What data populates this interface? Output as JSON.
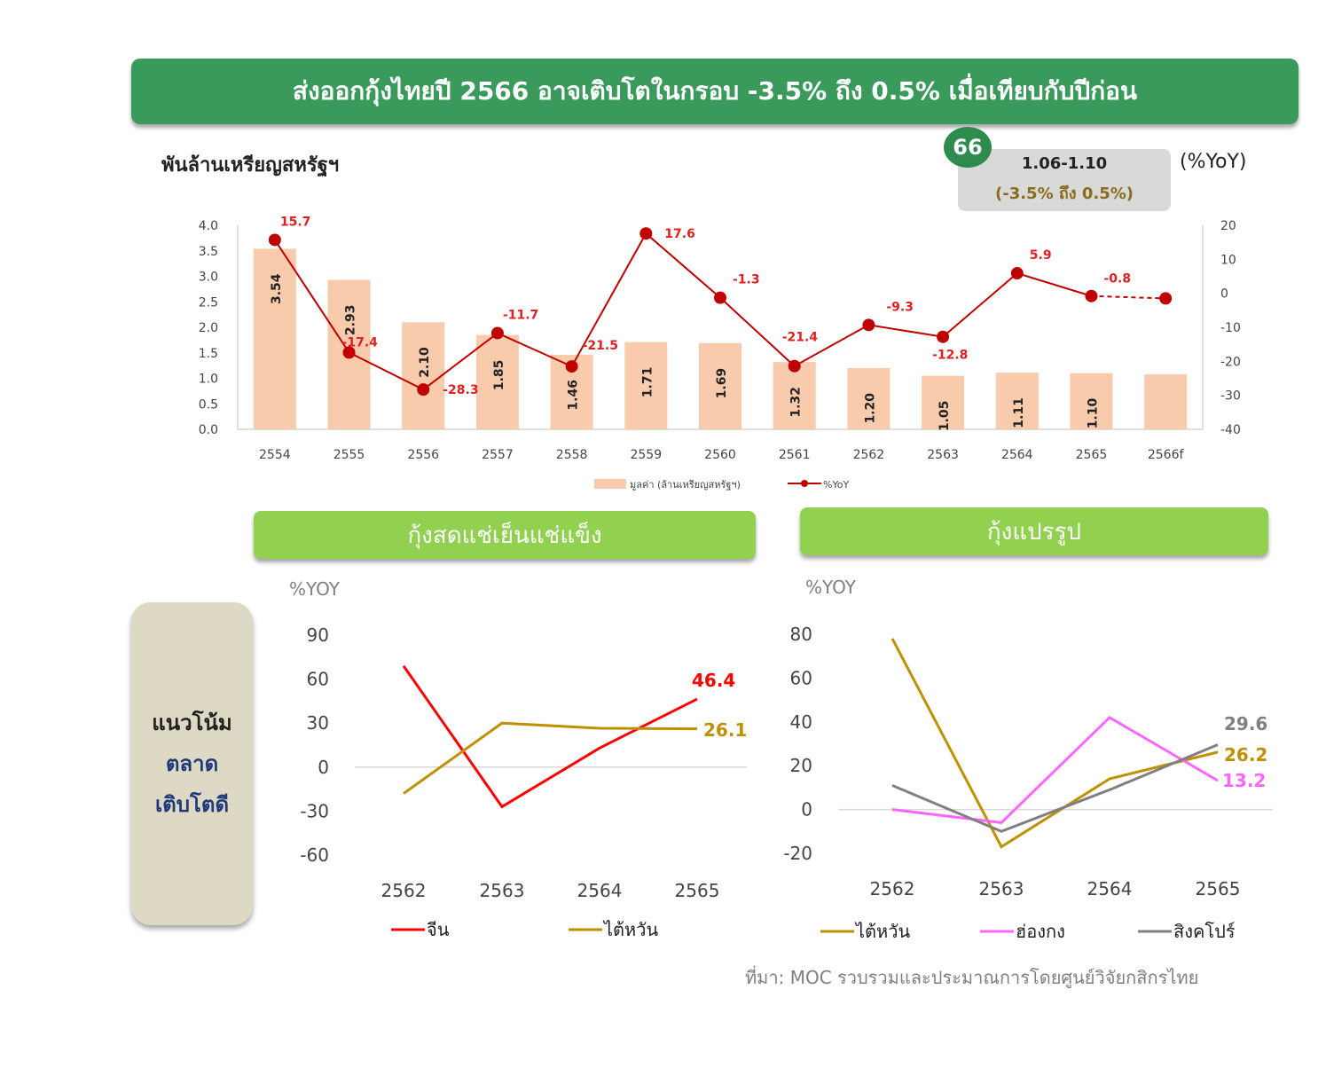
{
  "title": "ส่งออกกุ้งไทยปี 2566 อาจเติบโตในกรอบ -3.5% ถึง 0.5% เมื่อเทียบกับปีก่อน",
  "unit_left": "พันล้านเหรียญสหรัฐฯ",
  "unit_right": "(%YoY)",
  "badge": "66",
  "forecast": {
    "range": "1.06-1.10",
    "yoy": "(-3.5% ถึง 0.5%)"
  },
  "section_fresh": "กุ้งสดแช่เย็นแช่แข็ง",
  "section_processed": "กุ้งแปรรูป",
  "trend": {
    "line1": "แนวโน้ม",
    "line2": "ตลาด",
    "line3": "เติบโตดี"
  },
  "yoy_label_left": "%YOY",
  "yoy_label_right": "%YOY",
  "source": "ที่มา: MOC รวบรวมและประมาณการโดยศูนย์วิจัยกสิกรไทย",
  "colors": {
    "banner": "#3a9a5c",
    "section": "#92d050",
    "bar": "#f8cbad",
    "yoy_line": "#c00000"
  },
  "chart_data": [
    {
      "type": "bar",
      "categories": [
        "2554",
        "2555",
        "2556",
        "2557",
        "2558",
        "2559",
        "2560",
        "2561",
        "2562",
        "2563",
        "2564",
        "2565",
        "2566f"
      ],
      "series": [
        {
          "name": "มูลค่า (ล้านเหรียญสหรัฐฯ)",
          "type": "bar",
          "values": [
            3.54,
            2.93,
            2.1,
            1.85,
            1.46,
            1.71,
            1.69,
            1.32,
            1.2,
            1.05,
            1.11,
            1.1,
            1.08
          ],
          "labels": [
            "3.54",
            "2.93",
            "2.10",
            "1.85",
            "1.46",
            "1.71",
            "1.69",
            "1.32",
            "1.20",
            "1.05",
            "1.11",
            "1.10",
            ""
          ]
        },
        {
          "name": "%YoY",
          "type": "line",
          "axis": "right",
          "values": [
            15.7,
            -17.4,
            -28.3,
            -11.7,
            -21.5,
            17.6,
            -1.3,
            -21.4,
            -9.3,
            -12.8,
            5.9,
            -0.8,
            -1.5
          ],
          "labels": [
            "15.7",
            "-17.4",
            "-28.3",
            "-11.7",
            "-21.5",
            "17.6",
            "-1.3",
            "-21.4",
            "-9.3",
            "-12.8",
            "5.9",
            "-0.8",
            ""
          ],
          "last_segment": "dashed"
        }
      ],
      "ylim": [
        0,
        4.0
      ],
      "yticks": [
        "0.0",
        "0.5",
        "1.0",
        "1.5",
        "2.0",
        "2.5",
        "3.0",
        "3.5",
        "4.0"
      ],
      "y2lim": [
        -40,
        20
      ],
      "y2ticks": [
        "-40",
        "-30",
        "-20",
        "-10",
        "0",
        "10",
        "20"
      ],
      "legend": "bottom"
    },
    {
      "type": "line",
      "x": [
        "2562",
        "2563",
        "2564",
        "2565"
      ],
      "series": [
        {
          "name": "จีน",
          "color": "#ff0000",
          "values": [
            69,
            -27,
            13,
            46.4
          ],
          "end_label": "46.4"
        },
        {
          "name": "ไต้หวัน",
          "color": "#bf9000",
          "values": [
            -18,
            30,
            26.5,
            26.1
          ],
          "end_label": "26.1"
        }
      ],
      "ylim": [
        -60,
        90
      ],
      "yticks": [
        "90",
        "60",
        "30",
        "0",
        "-30",
        "-60"
      ],
      "legend": "bottom"
    },
    {
      "type": "line",
      "x": [
        "2562",
        "2563",
        "2564",
        "2565"
      ],
      "series": [
        {
          "name": "ไต้หวัน",
          "color": "#bf9000",
          "values": [
            78,
            -17,
            14,
            26.2
          ],
          "end_label": "26.2"
        },
        {
          "name": "ฮ่องกง",
          "color": "#ff66ff",
          "values": [
            0,
            -6,
            42,
            13.2
          ],
          "end_label": "13.2"
        },
        {
          "name": "สิงคโปร์",
          "color": "#808080",
          "values": [
            11,
            -10,
            9,
            29.6
          ],
          "end_label": "29.6"
        }
      ],
      "ylim": [
        -20,
        80
      ],
      "yticks": [
        "80",
        "60",
        "40",
        "20",
        "0",
        "-20"
      ],
      "legend": "bottom"
    }
  ]
}
